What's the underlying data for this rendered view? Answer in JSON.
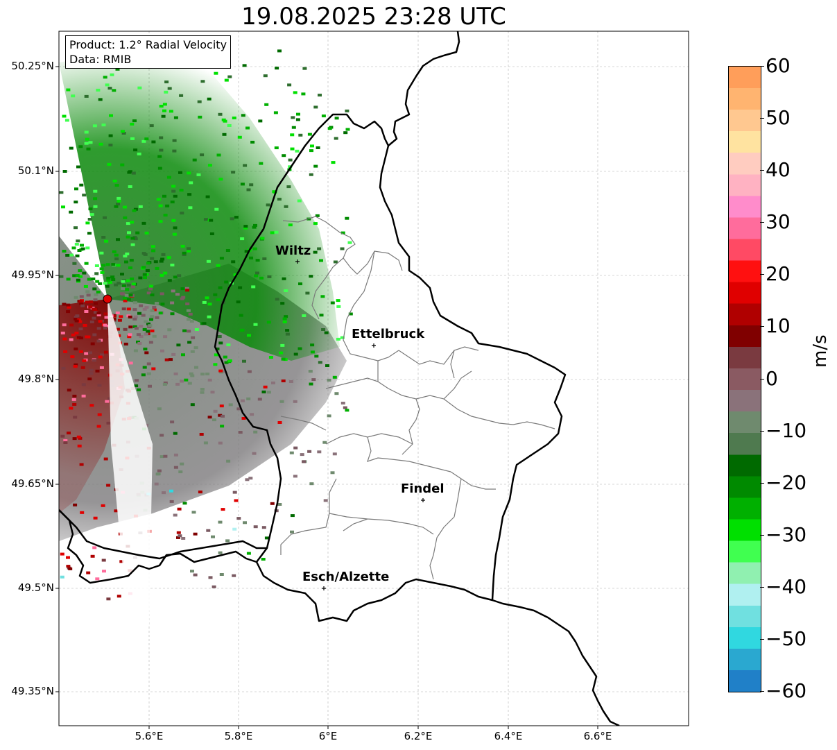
{
  "title": "19.08.2025 23:28 UTC",
  "info": {
    "product_line": "Product: 1.2° Radial Velocity",
    "data_line": "Data: RMIB"
  },
  "axes": {
    "lat_labels": [
      "50.25°N",
      "50.1°N",
      "49.95°N",
      "49.8°N",
      "49.65°N",
      "49.5°N",
      "49.35°N"
    ],
    "lon_labels": [
      "5.6°E",
      "5.8°E",
      "6°E",
      "6.2°E",
      "6.4°E",
      "6.6°E"
    ]
  },
  "cities": [
    {
      "name": "Wiltz",
      "lon": 5.93,
      "lat": 49.966
    },
    {
      "name": "Ettelbruck",
      "lon": 6.103,
      "lat": 49.847
    },
    {
      "name": "Findel",
      "lon": 6.21,
      "lat": 49.63
    },
    {
      "name": "Esch/Alzette",
      "lon": 5.99,
      "lat": 49.497
    }
  ],
  "radar_site": {
    "lon": 5.505,
    "lat": 49.914
  },
  "colorbar": {
    "label": "m/s",
    "min": -60,
    "max": 60,
    "ticks": [
      "60",
      "50",
      "40",
      "30",
      "20",
      "10",
      "0",
      "−10",
      "−20",
      "−30",
      "−40",
      "−50",
      "−60"
    ],
    "colors_top_to_bottom": [
      "#ff9e5a",
      "#ffb470",
      "#ffc890",
      "#ffe3a0",
      "#ffccc0",
      "#ffb2c2",
      "#ff8ccb",
      "#ff6c9c",
      "#ff4a64",
      "#ff1010",
      "#e00000",
      "#b00000",
      "#800000",
      "#7a3a40",
      "#8a5a62",
      "#8a727a",
      "#6f8a6e",
      "#4f7a4f",
      "#006a00",
      "#008a00",
      "#00b000",
      "#00e000",
      "#40ff50",
      "#90f0b0",
      "#b0f0f0",
      "#70e0e0",
      "#30d8e0",
      "#2aa8d0",
      "#2080c8"
    ]
  },
  "colors": {
    "country_border": "#000000",
    "canton_border": "#7a7a7a",
    "grid": "#b0b0b0",
    "radar_site": "#e00000"
  }
}
